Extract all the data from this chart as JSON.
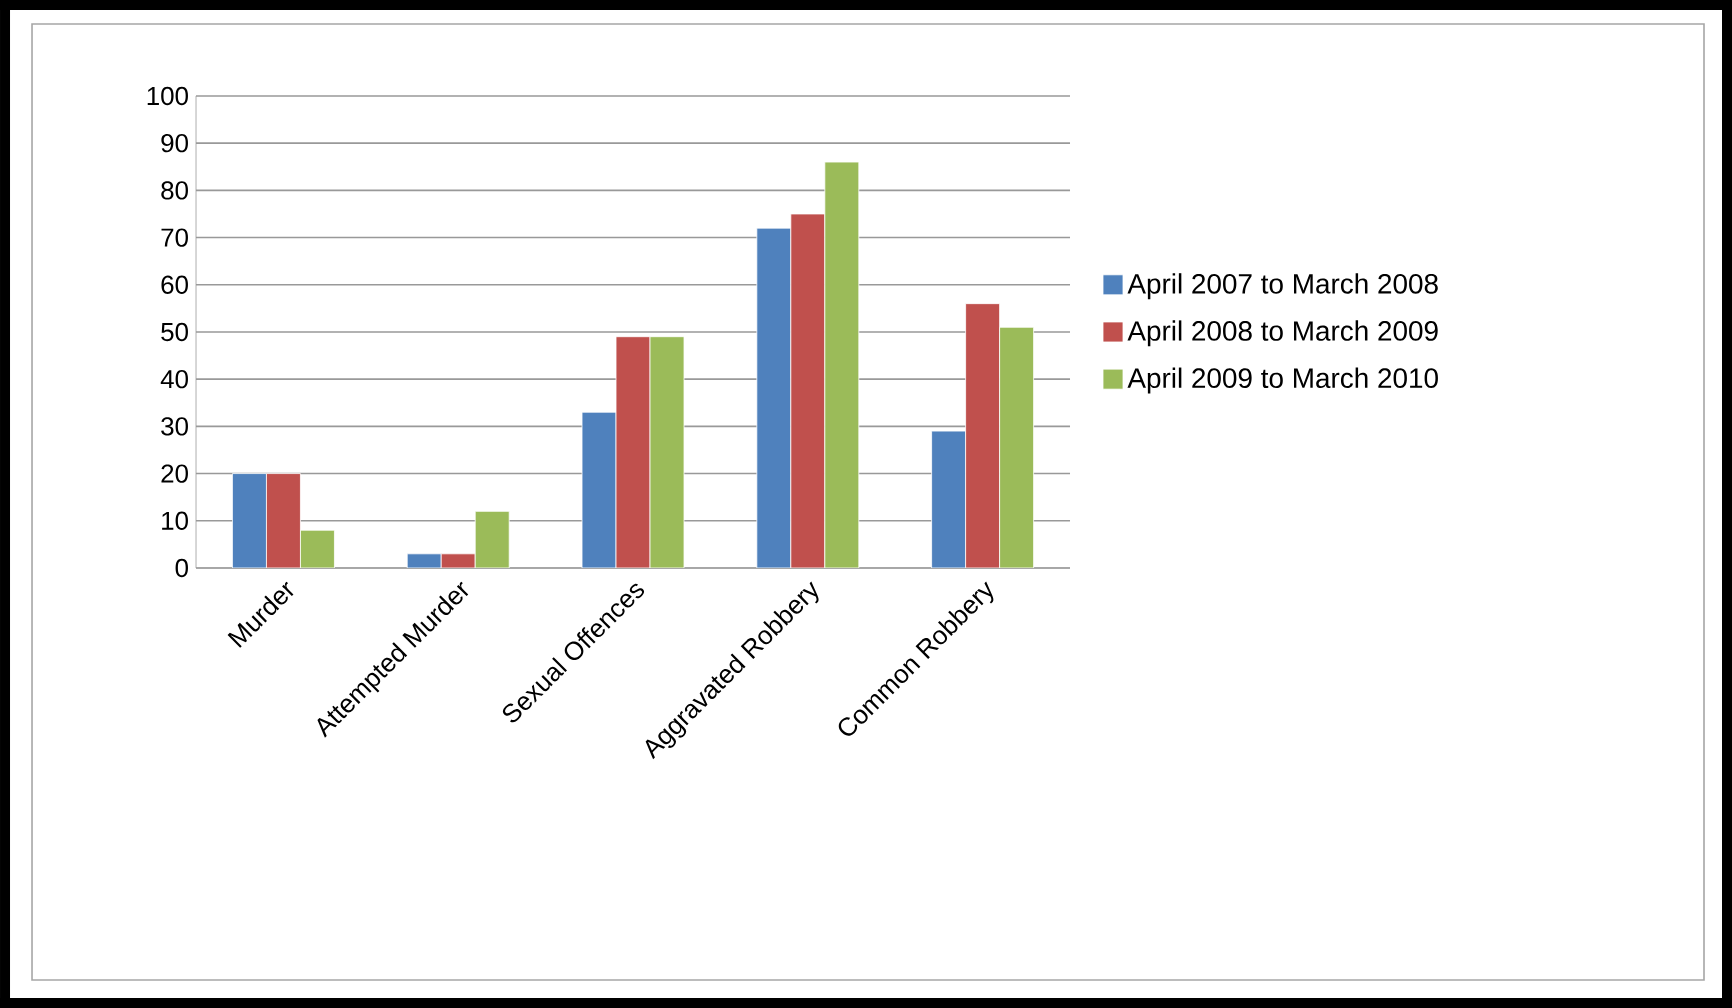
{
  "chart_data": {
    "type": "bar",
    "categories": [
      "Murder",
      "Attempted Murder",
      "Sexual Offences",
      "Aggravated Robbery",
      "Common Robbery"
    ],
    "series": [
      {
        "name": "April 2007 to March 2008",
        "color": "#4f81bd",
        "values": [
          20,
          3,
          33,
          72,
          29
        ]
      },
      {
        "name": "April 2008 to March 2009",
        "color": "#c0504d",
        "values": [
          20,
          3,
          49,
          75,
          56
        ]
      },
      {
        "name": "April 2009 to March 2010",
        "color": "#9bbb59",
        "values": [
          8,
          12,
          49,
          86,
          51
        ]
      }
    ],
    "ylim": [
      0,
      100
    ],
    "yticks": [
      0,
      10,
      20,
      30,
      40,
      50,
      60,
      70,
      80,
      90,
      100
    ],
    "grid": "y",
    "legend": "right"
  }
}
